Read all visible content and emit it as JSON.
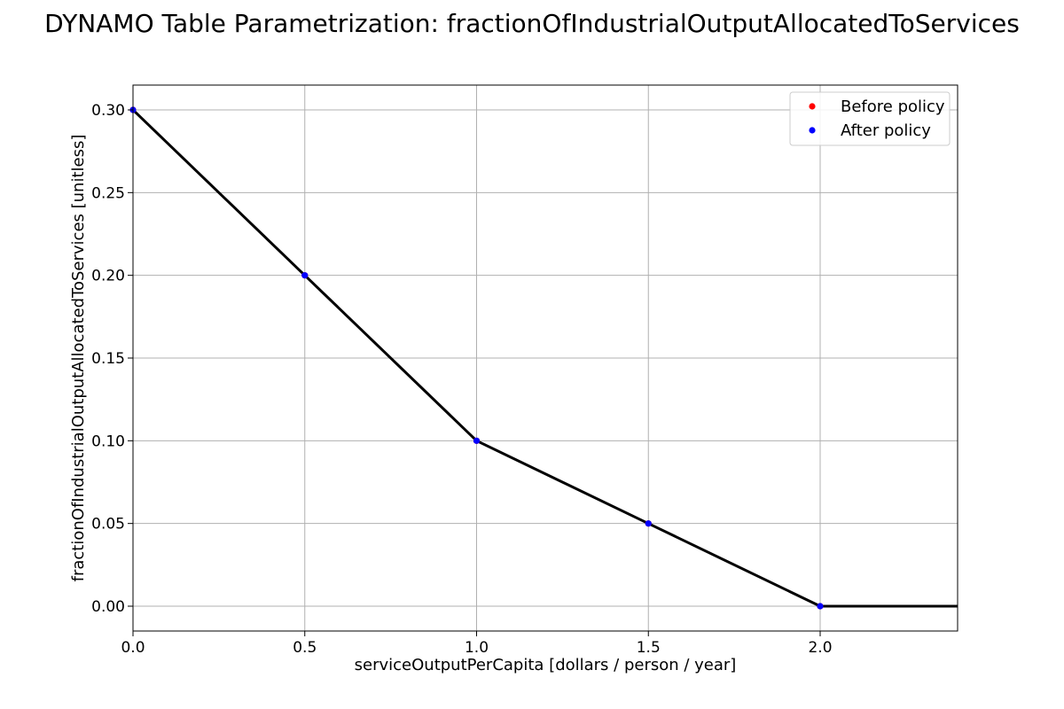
{
  "chart_data": {
    "type": "line",
    "title": "DYNAMO Table Parametrization: fractionOfIndustrialOutputAllocatedToServices",
    "xlabel": "serviceOutputPerCapita [dollars / person / year]",
    "ylabel": "fractionOfIndustrialOutputAllocatedToServices [unitless]",
    "xlim": [
      0.0,
      2.4
    ],
    "ylim": [
      -0.015,
      0.315
    ],
    "xticks": [
      0.0,
      0.5,
      1.0,
      1.5,
      2.0
    ],
    "xtick_labels": [
      "0.0",
      "0.5",
      "1.0",
      "1.5",
      "2.0"
    ],
    "yticks": [
      0.0,
      0.05,
      0.1,
      0.15,
      0.2,
      0.25,
      0.3
    ],
    "ytick_labels": [
      "0.00",
      "0.05",
      "0.10",
      "0.15",
      "0.20",
      "0.25",
      "0.30"
    ],
    "grid": true,
    "legend_position": "top-right",
    "line": {
      "color": "#000000",
      "x": [
        0.0,
        0.5,
        1.0,
        1.5,
        2.0,
        2.4
      ],
      "y": [
        0.3,
        0.2,
        0.1,
        0.05,
        0.0,
        0.0
      ]
    },
    "series": [
      {
        "name": "Before policy",
        "color": "#ff0000",
        "x": [
          0.0,
          0.5,
          1.0,
          1.5,
          2.0
        ],
        "y": [
          0.3,
          0.2,
          0.1,
          0.05,
          0.0
        ]
      },
      {
        "name": "After policy",
        "color": "#0000ff",
        "x": [
          0.0,
          0.5,
          1.0,
          1.5,
          2.0
        ],
        "y": [
          0.3,
          0.2,
          0.1,
          0.05,
          0.0
        ]
      }
    ]
  }
}
